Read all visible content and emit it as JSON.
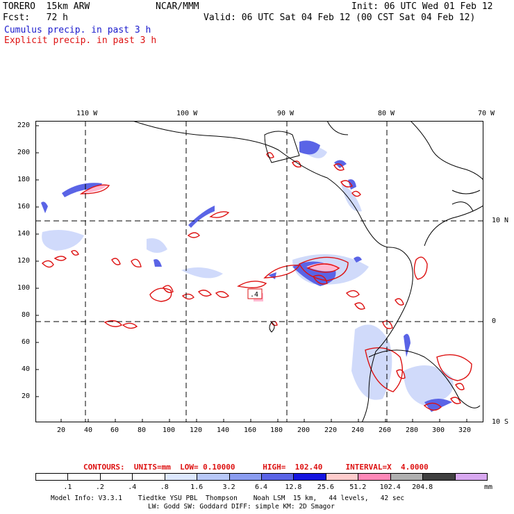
{
  "header": {
    "model": "TORERO  15km ARW",
    "org": "NCAR/MMM",
    "init": "Init: 06 UTC Wed 01 Feb 12",
    "fcst": "Fcst:   72 h",
    "valid": "Valid: 06 UTC Sat 04 Feb 12 (00 CST Sat 04 Feb 12)",
    "legend_cumulus": "Cumulus precip. in past 3 h",
    "legend_explicit": "Explicit precip. in past 3 h"
  },
  "colors": {
    "cumulus": "#1a1acc",
    "explicit": "#dd1111",
    "grid": "#000000"
  },
  "map": {
    "lon_labels": [
      "110 W",
      "100 W",
      "90 W",
      "80 W",
      "70 W"
    ],
    "lat_labels": [
      "10 N",
      "0",
      "10 S"
    ],
    "y_ticks": [
      "220",
      "200",
      "180",
      "160",
      "140",
      "120",
      "100",
      "80",
      "60",
      "40",
      "20"
    ],
    "x_ticks": [
      "20",
      "40",
      "60",
      "80",
      "100",
      "120",
      "140",
      "160",
      "180",
      "200",
      "220",
      "240",
      "260",
      "280",
      "300",
      "320"
    ],
    "value_label": ".4"
  },
  "contours_line": "CONTOURS:  UNITS=mm  LOW= 0.10000      HIGH=  102.40     INTERVAL=X  4.0000",
  "colorbar": {
    "labels": [
      ".1",
      ".2",
      ".4",
      ".8",
      "1.6",
      "3.2",
      "6.4",
      "12.8",
      "25.6",
      "51.2",
      "102.4",
      "204.8"
    ],
    "unit": "mm",
    "colors": [
      "#ffffff",
      "#ffffff",
      "#ffffff",
      "#ffffff",
      "#dde8ff",
      "#b8c8f8",
      "#8a9cf0",
      "#5a64e6",
      "#1515e0",
      "#ffcccc",
      "#ff88b8",
      "#b0b0b0",
      "#404040",
      "#d8a8f0"
    ]
  },
  "footer": {
    "line1": "Model Info: V3.3.1    Tiedtke YSU PBL  Thompson    Noah LSM  15 km,   44 levels,   42 sec",
    "line2": "LW: Godd SW: Goddard DIFF: simple KM: 2D Smagor"
  }
}
